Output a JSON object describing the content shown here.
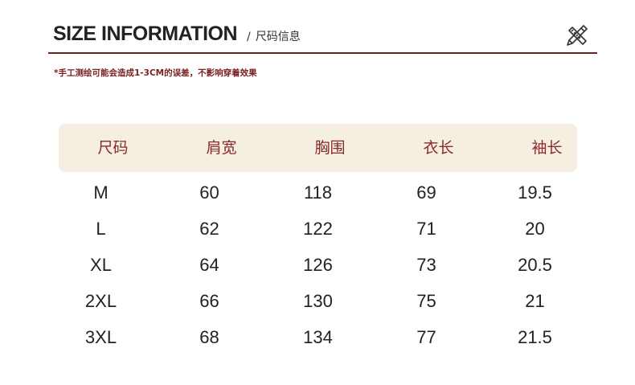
{
  "header": {
    "title": "SIZE INFORMATION",
    "separator": "/",
    "subtitle": "尺码信息",
    "icon": "pencil-ruler-icon"
  },
  "note": "*手工测绘可能会造成1-3CM的误差，不影响穿着效果",
  "colors": {
    "accent": "#6b2226",
    "header_bg": "#f5efe2",
    "header_text": "#8a2a2a"
  },
  "table": {
    "columns": [
      "尺码",
      "肩宽",
      "胸围",
      "衣长",
      "袖长"
    ],
    "rows": [
      [
        "M",
        "60",
        "118",
        "69",
        "19.5"
      ],
      [
        "L",
        "62",
        "122",
        "71",
        "20"
      ],
      [
        "XL",
        "64",
        "126",
        "73",
        "20.5"
      ],
      [
        "2XL",
        "66",
        "130",
        "75",
        "21"
      ],
      [
        "3XL",
        "68",
        "134",
        "77",
        "21.5"
      ]
    ]
  }
}
